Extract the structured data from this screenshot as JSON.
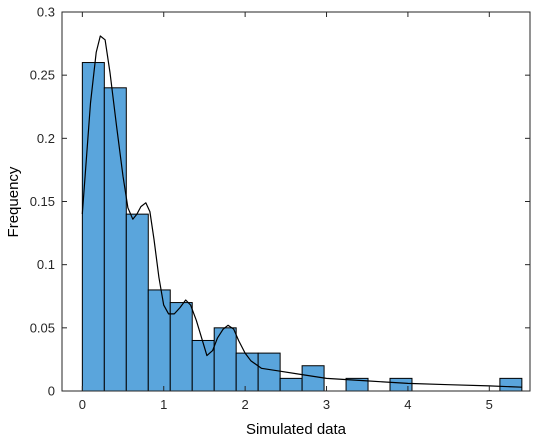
{
  "chart_data": {
    "type": "bar",
    "title": "",
    "xlabel": "Simulated data",
    "ylabel": "Frequency",
    "xlim": [
      -0.25,
      5.5
    ],
    "ylim": [
      0,
      0.3
    ],
    "xticks": [
      0,
      1,
      2,
      3,
      4,
      5
    ],
    "yticks": [
      0,
      0.05,
      0.1,
      0.15,
      0.2,
      0.25,
      0.3
    ],
    "xtick_labels": [
      "0",
      "1",
      "2",
      "3",
      "4",
      "5"
    ],
    "ytick_labels": [
      "0",
      "0.05",
      "0.1",
      "0.15",
      "0.2",
      "0.25",
      "0.3"
    ],
    "grid": false,
    "bar_color": "#5aa5dc",
    "bin_edges": [
      0.0,
      0.27,
      0.54,
      0.81,
      1.08,
      1.35,
      1.62,
      1.89,
      2.16,
      2.43,
      2.7,
      2.97,
      3.24,
      3.51,
      3.78,
      4.05,
      4.32,
      4.59,
      4.86,
      5.13,
      5.4
    ],
    "values": [
      0.26,
      0.24,
      0.14,
      0.08,
      0.07,
      0.04,
      0.05,
      0.03,
      0.03,
      0.01,
      0.02,
      0,
      0.01,
      0,
      0.01,
      0,
      0,
      0,
      0,
      0.01
    ],
    "density_curve": {
      "color": "#000000",
      "x": [
        0.0,
        0.1,
        0.17,
        0.22,
        0.28,
        0.34,
        0.42,
        0.5,
        0.56,
        0.62,
        0.67,
        0.72,
        0.78,
        0.83,
        0.88,
        0.94,
        1.0,
        1.06,
        1.13,
        1.2,
        1.27,
        1.33,
        1.4,
        1.47,
        1.53,
        1.6,
        1.66,
        1.73,
        1.79,
        1.86,
        1.92,
        2.0,
        2.07,
        2.2,
        2.4,
        2.7,
        3.0,
        3.5,
        4.0,
        4.5,
        5.0,
        5.4
      ],
      "y": [
        0.14,
        0.228,
        0.268,
        0.281,
        0.278,
        0.252,
        0.21,
        0.17,
        0.145,
        0.136,
        0.14,
        0.146,
        0.149,
        0.142,
        0.12,
        0.09,
        0.068,
        0.061,
        0.061,
        0.066,
        0.072,
        0.068,
        0.056,
        0.041,
        0.028,
        0.032,
        0.042,
        0.049,
        0.052,
        0.049,
        0.04,
        0.03,
        0.024,
        0.018,
        0.016,
        0.013,
        0.01,
        0.008,
        0.006,
        0.005,
        0.004,
        0.003
      ]
    }
  }
}
